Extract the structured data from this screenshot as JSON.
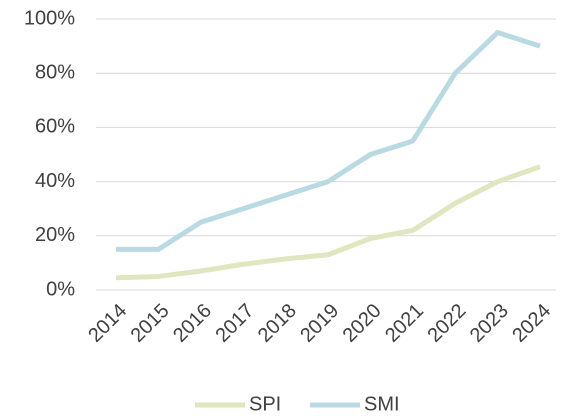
{
  "chart_data": {
    "type": "line",
    "categories": [
      "2014",
      "2015",
      "2016",
      "2017",
      "2018",
      "2019",
      "2020",
      "2021",
      "2022",
      "2023",
      "2024"
    ],
    "series": [
      {
        "name": "SPI",
        "color": "#dfe6c0",
        "values": [
          4.5,
          5,
          7,
          9.5,
          11.5,
          13,
          19,
          22,
          32,
          40,
          45.5
        ]
      },
      {
        "name": "SMI",
        "color": "#b9d9e3",
        "values": [
          15,
          15,
          25,
          30,
          35,
          40,
          50,
          55,
          80,
          95,
          90
        ]
      }
    ],
    "ylim": [
      0,
      100
    ],
    "yticks": [
      {
        "value": 0,
        "label": "0%"
      },
      {
        "value": 20,
        "label": "20%"
      },
      {
        "value": 40,
        "label": "40%"
      },
      {
        "value": 60,
        "label": "60%"
      },
      {
        "value": 80,
        "label": "80%"
      },
      {
        "value": 100,
        "label": "100%"
      }
    ],
    "grid": true,
    "legend": "bottom"
  }
}
